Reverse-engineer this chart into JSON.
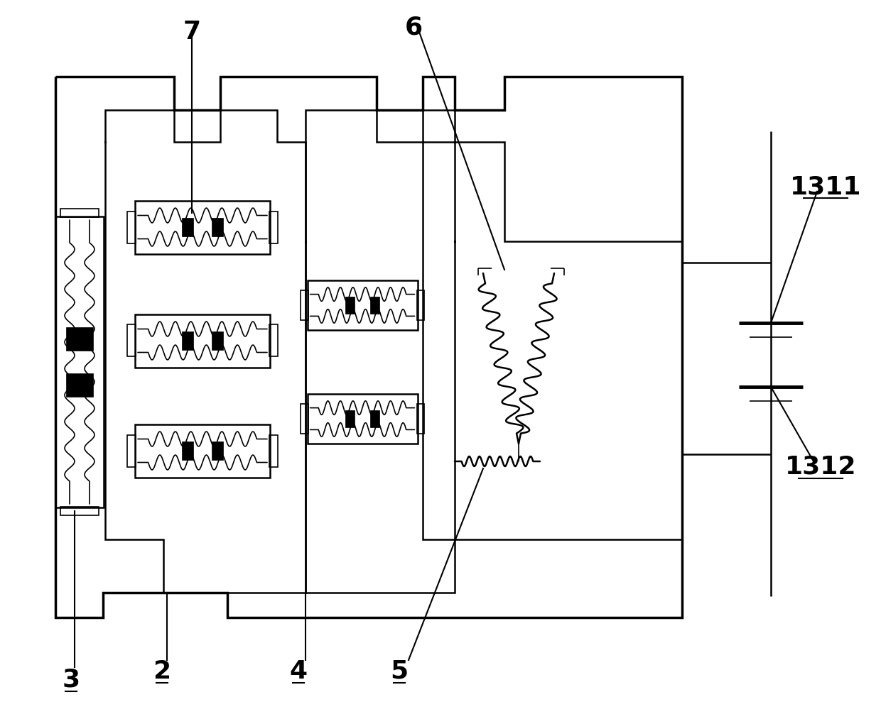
{
  "bg_color": "#ffffff",
  "line_color": "#000000",
  "lw_main": 2.5,
  "lw_med": 1.8,
  "lw_thin": 1.2,
  "fig_width": 12.4,
  "fig_height": 10.13
}
